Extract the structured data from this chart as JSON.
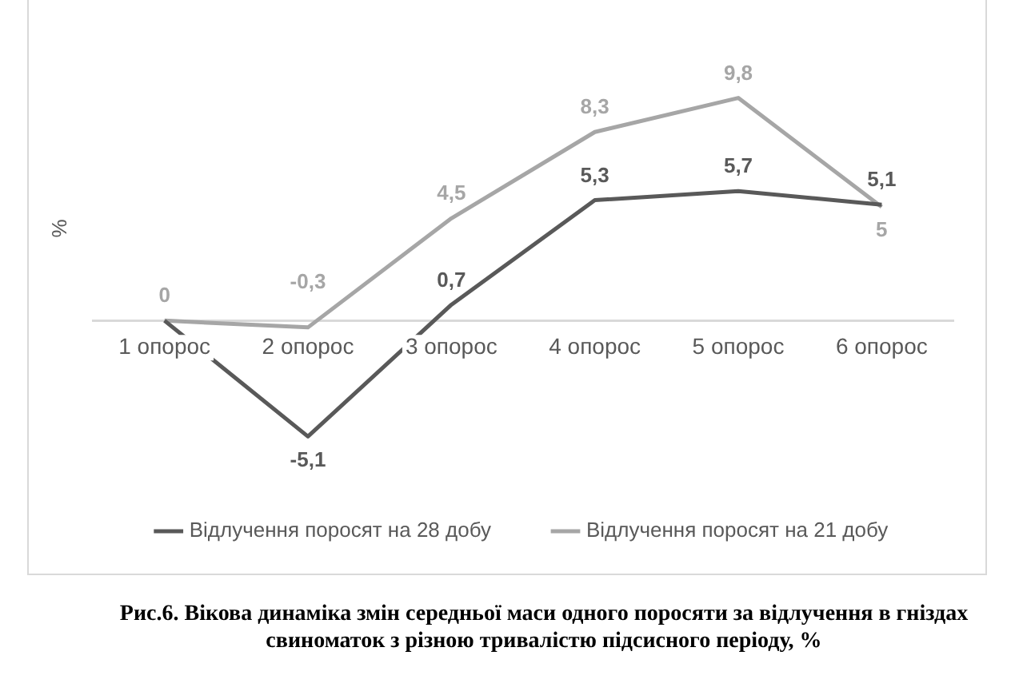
{
  "chart_data": {
    "type": "line",
    "ylabel": "%",
    "categories": [
      "1 опорос",
      "2 опорос",
      "3 опорос",
      "4 опорос",
      "5 опорос",
      "6 опорос"
    ],
    "series": [
      {
        "name": "Відлучення поросят на 28 добу",
        "color": "#595959",
        "values": [
          0,
          -5.1,
          0.7,
          5.3,
          5.7,
          5.1
        ],
        "value_labels": [
          null,
          "-5,1",
          "0,7",
          "5,3",
          "5,7",
          "5,1"
        ]
      },
      {
        "name": "Відлучення поросят на 21 добу",
        "color": "#a6a6a6",
        "values": [
          0,
          -0.3,
          4.5,
          8.3,
          9.8,
          5
        ],
        "value_labels": [
          "0",
          "-0,3",
          "4,5",
          "8,3",
          "9,8",
          "5"
        ]
      }
    ],
    "marker": "none",
    "line_style": "solid",
    "grid": false,
    "legend": "bottom",
    "tick_labels": "x",
    "annotations": [
      "Рис.6. Вікова динаміка змін середньої маси одного поросяти за відлучення в гніздах свиноматок з різною тривалістю підсисного періоду, %"
    ]
  }
}
